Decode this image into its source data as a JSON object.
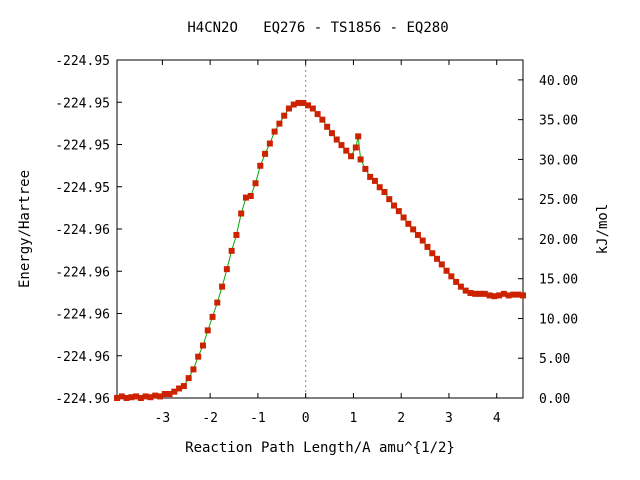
{
  "chart_data": {
    "type": "line",
    "title": "H4CN2O   EQ276 - TS1856 - EQ280",
    "xlabel": "Reaction Path Length/A amu^{1/2}",
    "ylabel": "Energy/Hartree",
    "y2label": "kJ/mol",
    "xlim": [
      -3.95,
      4.55
    ],
    "ylim": [
      0,
      42.5
    ],
    "x_ticks": [
      -3,
      -2,
      -1,
      0,
      1,
      2,
      3,
      4
    ],
    "y_left_tick_labels": [
      "-224.96",
      "-224.96",
      "-224.96",
      "-224.96",
      "-224.96",
      "-224.95",
      "-224.95",
      "-224.95",
      "-224.95"
    ],
    "y2_ticks": [
      "0.00",
      "5.00",
      "10.00",
      "15.00",
      "20.00",
      "25.00",
      "30.00",
      "35.00",
      "40.00"
    ],
    "vline_x": 0,
    "line_color": "#00aa00",
    "marker_color": "#cc2200",
    "series": [
      {
        "x": [
          -3.95,
          -3.85,
          -3.75,
          -3.65,
          -3.55,
          -3.45,
          -3.35,
          -3.25,
          -3.15,
          -3.05,
          -2.95,
          -2.85,
          -2.75,
          -2.65,
          -2.55,
          -2.45,
          -2.35,
          -2.25,
          -2.15,
          -2.05,
          -1.95,
          -1.85,
          -1.75,
          -1.65,
          -1.55,
          -1.45,
          -1.35,
          -1.25,
          -1.15,
          -1.05,
          -0.95,
          -0.85,
          -0.75,
          -0.65,
          -0.55,
          -0.45,
          -0.35,
          -0.25,
          -0.15,
          -0.05,
          0.05,
          0.15,
          0.25,
          0.35,
          0.45,
          0.55,
          0.65,
          0.75,
          0.85,
          0.95,
          1.05,
          1.1,
          1.15,
          1.25,
          1.35,
          1.45,
          1.55,
          1.65,
          1.75,
          1.85,
          1.95,
          2.05,
          2.15,
          2.25,
          2.35,
          2.45,
          2.55,
          2.65,
          2.75,
          2.85,
          2.95,
          3.05,
          3.15,
          3.25,
          3.35,
          3.45,
          3.55,
          3.65,
          3.75,
          3.85,
          3.95,
          4.05,
          4.15,
          4.25,
          4.35,
          4.45,
          4.55
        ],
        "y": [
          0.0,
          0.2,
          0.0,
          0.1,
          0.2,
          0.0,
          0.2,
          0.1,
          0.3,
          0.2,
          0.5,
          0.5,
          0.8,
          1.2,
          1.5,
          2.5,
          3.6,
          5.2,
          6.6,
          8.5,
          10.2,
          12.0,
          14.0,
          16.2,
          18.5,
          20.5,
          23.2,
          25.2,
          25.4,
          27.0,
          29.2,
          30.7,
          32.0,
          33.5,
          34.5,
          35.5,
          36.4,
          36.9,
          37.1,
          37.1,
          36.8,
          36.4,
          35.7,
          35.0,
          34.1,
          33.3,
          32.5,
          31.8,
          31.1,
          30.4,
          31.5,
          32.9,
          30.0,
          28.8,
          27.8,
          27.3,
          26.5,
          25.9,
          25.0,
          24.2,
          23.5,
          22.7,
          21.9,
          21.2,
          20.5,
          19.8,
          19.0,
          18.2,
          17.5,
          16.8,
          16.0,
          15.3,
          14.6,
          14.0,
          13.5,
          13.2,
          13.1,
          13.1,
          13.1,
          12.9,
          12.8,
          12.9,
          13.1,
          12.9,
          13.0,
          13.0,
          12.9
        ]
      }
    ]
  }
}
